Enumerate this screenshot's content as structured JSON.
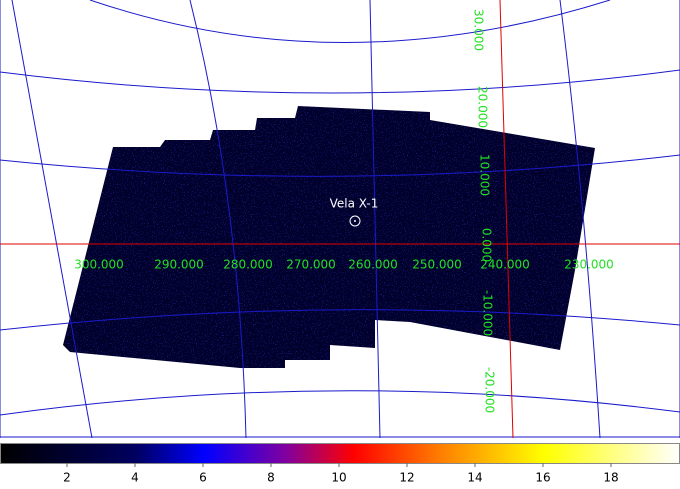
{
  "source_label": "Vela X-1",
  "longitude_labels": [
    "300.000",
    "290.000",
    "280.000",
    "270.000",
    "260.000",
    "250.000",
    "240.000",
    "230.000"
  ],
  "latitude_labels": [
    "30.000",
    "20.000",
    "10.000",
    "0.000",
    "-10.000",
    "-20.000"
  ],
  "colorbar": {
    "ticks": [
      2,
      4,
      6,
      8,
      10,
      12,
      14,
      16,
      18
    ]
  }
}
